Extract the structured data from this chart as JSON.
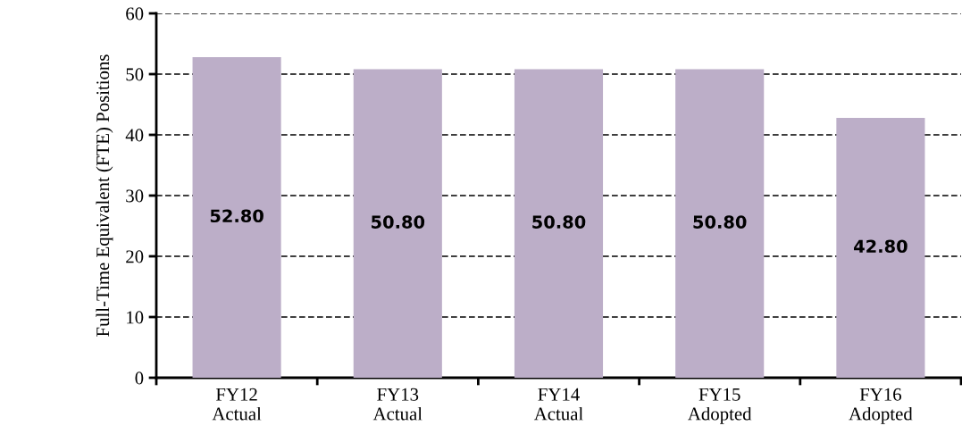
{
  "chart_data": {
    "type": "bar",
    "ylabel": "Full-Time Equivalent (FTE) Positions",
    "categories": [
      "FY12\nActual",
      "FY13\nActual",
      "FY14\nActual",
      "FY15\nAdopted",
      "FY16\nAdopted"
    ],
    "values": [
      52.8,
      50.8,
      50.8,
      50.8,
      42.8
    ],
    "value_labels": [
      "52.80",
      "50.80",
      "50.80",
      "50.80",
      "42.80"
    ],
    "color": "#bcaec8",
    "ylim": [
      0,
      60
    ],
    "yticks": [
      0,
      10,
      20,
      30,
      40,
      50,
      60
    ],
    "grid": "y",
    "line_style": "dashed",
    "legend": false
  }
}
